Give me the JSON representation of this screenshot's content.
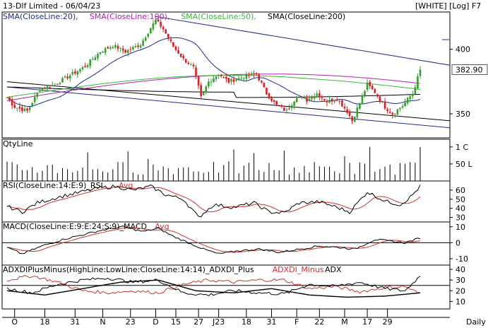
{
  "header": {
    "title": "13-Dlf Limited - 06/04/23",
    "mode": "[WHITE] [Log] F7"
  },
  "colors": {
    "up": "#33a02c",
    "down": "#e31a1c",
    "sma20": "#1f2b8f",
    "sma100": "#b020b0",
    "sma50": "#3ab83a",
    "sma200": "#000000",
    "trend": "#1f2b8f",
    "avg": "#d03030",
    "volume": "#000000",
    "grid": "#000000"
  },
  "chart_data": [
    {
      "type": "candlestick",
      "panel": "price",
      "legend": [
        {
          "label": "SMA(CloseLine:20),",
          "color": "#1f2b8f"
        },
        {
          "label": "SMA(CloseLine:100),",
          "color": "#b020b0"
        },
        {
          "label": "SMA(CloseLine:50),",
          "color": "#3ab83a"
        },
        {
          "label": "SMA(CloseLine:200)",
          "color": "#000000"
        }
      ],
      "yticks": [
        400,
        350
      ],
      "ylim": [
        333,
        432
      ],
      "last_price": "382.90",
      "xticks": [
        "O",
        "18",
        "31",
        "N",
        "23",
        "D",
        "15",
        "27",
        "J23",
        "18",
        "31",
        "F",
        "22",
        "M",
        "17",
        "29"
      ],
      "xtick_positions": [
        3,
        15,
        27,
        38,
        49,
        59,
        67,
        76,
        84,
        95,
        105,
        115,
        124,
        134,
        143,
        151
      ],
      "trendlines": [
        {
          "from": [
            59,
            428
          ],
          "to": [
            164,
            387
          ]
        },
        {
          "from": [
            0,
            370
          ],
          "to": [
            164,
            340
          ]
        },
        {
          "from": [
            0,
            374
          ],
          "to": [
            164,
            345
          ]
        }
      ],
      "keypoints": [
        {
          "i": 0,
          "c": 362
        },
        {
          "i": 3,
          "c": 355
        },
        {
          "i": 8,
          "c": 352
        },
        {
          "i": 13,
          "c": 368
        },
        {
          "i": 19,
          "c": 372
        },
        {
          "i": 25,
          "c": 379
        },
        {
          "i": 31,
          "c": 386
        },
        {
          "i": 37,
          "c": 398
        },
        {
          "i": 42,
          "c": 403
        },
        {
          "i": 47,
          "c": 398
        },
        {
          "i": 53,
          "c": 404
        },
        {
          "i": 59,
          "c": 425
        },
        {
          "i": 62,
          "c": 417
        },
        {
          "i": 66,
          "c": 402
        },
        {
          "i": 70,
          "c": 392
        },
        {
          "i": 74,
          "c": 385
        },
        {
          "i": 77,
          "c": 362
        },
        {
          "i": 80,
          "c": 374
        },
        {
          "i": 84,
          "c": 380
        },
        {
          "i": 88,
          "c": 374
        },
        {
          "i": 94,
          "c": 378
        },
        {
          "i": 99,
          "c": 380
        },
        {
          "i": 103,
          "c": 365
        },
        {
          "i": 107,
          "c": 356
        },
        {
          "i": 111,
          "c": 352
        },
        {
          "i": 115,
          "c": 363
        },
        {
          "i": 119,
          "c": 360
        },
        {
          "i": 123,
          "c": 365
        },
        {
          "i": 127,
          "c": 359
        },
        {
          "i": 131,
          "c": 361
        },
        {
          "i": 135,
          "c": 352
        },
        {
          "i": 137,
          "c": 345
        },
        {
          "i": 140,
          "c": 358
        },
        {
          "i": 143,
          "c": 372
        },
        {
          "i": 146,
          "c": 366
        },
        {
          "i": 150,
          "c": 355
        },
        {
          "i": 153,
          "c": 350
        },
        {
          "i": 157,
          "c": 356
        },
        {
          "i": 161,
          "c": 365
        },
        {
          "i": 164,
          "c": 383
        }
      ]
    },
    {
      "type": "bar",
      "panel": "volume",
      "legend": [
        {
          "label": "QtyLine",
          "color": "#000000"
        }
      ],
      "yticks": [
        "1 C",
        "50 L"
      ],
      "ytick_values": [
        100,
        50
      ]
    },
    {
      "type": "line",
      "panel": "rsi",
      "legend": [
        {
          "label": "RSI(CloseLine:14:E:9)_RSI",
          "color": "#000000"
        },
        {
          "label": "Avg",
          "color": "#d03030"
        }
      ],
      "yticks": [
        60,
        50,
        40,
        30
      ],
      "ylim": [
        25,
        70
      ],
      "keypoints": [
        {
          "i": 0,
          "v": 42
        },
        {
          "i": 6,
          "v": 36
        },
        {
          "i": 12,
          "v": 46
        },
        {
          "i": 20,
          "v": 52
        },
        {
          "i": 28,
          "v": 57
        },
        {
          "i": 36,
          "v": 62
        },
        {
          "i": 43,
          "v": 64
        },
        {
          "i": 50,
          "v": 60
        },
        {
          "i": 57,
          "v": 64
        },
        {
          "i": 63,
          "v": 55
        },
        {
          "i": 70,
          "v": 50
        },
        {
          "i": 76,
          "v": 30
        },
        {
          "i": 82,
          "v": 44
        },
        {
          "i": 90,
          "v": 41
        },
        {
          "i": 98,
          "v": 46
        },
        {
          "i": 104,
          "v": 36
        },
        {
          "i": 110,
          "v": 35
        },
        {
          "i": 116,
          "v": 46
        },
        {
          "i": 124,
          "v": 47
        },
        {
          "i": 130,
          "v": 42
        },
        {
          "i": 136,
          "v": 36
        },
        {
          "i": 143,
          "v": 58
        },
        {
          "i": 150,
          "v": 48
        },
        {
          "i": 156,
          "v": 44
        },
        {
          "i": 160,
          "v": 52
        },
        {
          "i": 164,
          "v": 64
        }
      ]
    },
    {
      "type": "line",
      "panel": "macd",
      "legend": [
        {
          "label": "MACD(CloseLine:E:9:E:24:S:9)_MACD",
          "color": "#000000"
        },
        {
          "label": "Avg",
          "color": "#d03030"
        }
      ],
      "yticks": [
        10,
        0,
        -10
      ],
      "ylim": [
        -14,
        13
      ],
      "zero_line": 0,
      "keypoints": [
        {
          "i": 0,
          "v": -3
        },
        {
          "i": 6,
          "v": -7
        },
        {
          "i": 14,
          "v": -2
        },
        {
          "i": 22,
          "v": 2
        },
        {
          "i": 30,
          "v": 5
        },
        {
          "i": 38,
          "v": 8
        },
        {
          "i": 46,
          "v": 10
        },
        {
          "i": 54,
          "v": 7
        },
        {
          "i": 60,
          "v": 9
        },
        {
          "i": 66,
          "v": 4
        },
        {
          "i": 72,
          "v": 0
        },
        {
          "i": 78,
          "v": -4
        },
        {
          "i": 84,
          "v": -7
        },
        {
          "i": 92,
          "v": -5
        },
        {
          "i": 100,
          "v": -4
        },
        {
          "i": 108,
          "v": -6
        },
        {
          "i": 116,
          "v": -4
        },
        {
          "i": 124,
          "v": -2
        },
        {
          "i": 132,
          "v": -3
        },
        {
          "i": 138,
          "v": -4
        },
        {
          "i": 146,
          "v": 2
        },
        {
          "i": 152,
          "v": 1
        },
        {
          "i": 158,
          "v": 0
        },
        {
          "i": 164,
          "v": 3
        }
      ]
    },
    {
      "type": "line",
      "panel": "adx",
      "legend": [
        {
          "label": "ADXDIPlusMinus(HighLine:LowLine:CloseLine:14:14)_ADXDI_Plus",
          "color": "#000000"
        },
        {
          "label": "ADXDI_Minus",
          "color": "#d03030"
        },
        {
          "label": "ADX",
          "color": "#000000"
        }
      ],
      "yticks": [
        40,
        30,
        20,
        10
      ],
      "ylim": [
        3,
        44
      ],
      "reference_line": 25,
      "plus_keypoints": [
        {
          "i": 0,
          "v": 22
        },
        {
          "i": 10,
          "v": 18
        },
        {
          "i": 20,
          "v": 26
        },
        {
          "i": 30,
          "v": 30
        },
        {
          "i": 40,
          "v": 32
        },
        {
          "i": 50,
          "v": 28
        },
        {
          "i": 60,
          "v": 30
        },
        {
          "i": 70,
          "v": 18
        },
        {
          "i": 80,
          "v": 16
        },
        {
          "i": 90,
          "v": 20
        },
        {
          "i": 100,
          "v": 18
        },
        {
          "i": 110,
          "v": 17
        },
        {
          "i": 120,
          "v": 26
        },
        {
          "i": 130,
          "v": 24
        },
        {
          "i": 140,
          "v": 28
        },
        {
          "i": 150,
          "v": 22
        },
        {
          "i": 158,
          "v": 20
        },
        {
          "i": 164,
          "v": 34
        }
      ],
      "minus_keypoints": [
        {
          "i": 0,
          "v": 30
        },
        {
          "i": 10,
          "v": 34
        },
        {
          "i": 20,
          "v": 28
        },
        {
          "i": 30,
          "v": 20
        },
        {
          "i": 40,
          "v": 18
        },
        {
          "i": 50,
          "v": 20
        },
        {
          "i": 60,
          "v": 18
        },
        {
          "i": 70,
          "v": 26
        },
        {
          "i": 80,
          "v": 30
        },
        {
          "i": 90,
          "v": 28
        },
        {
          "i": 100,
          "v": 30
        },
        {
          "i": 110,
          "v": 30
        },
        {
          "i": 120,
          "v": 22
        },
        {
          "i": 130,
          "v": 24
        },
        {
          "i": 140,
          "v": 19
        },
        {
          "i": 150,
          "v": 23
        },
        {
          "i": 158,
          "v": 24
        },
        {
          "i": 164,
          "v": 17
        }
      ],
      "adx_keypoints": [
        {
          "i": 0,
          "v": 20
        },
        {
          "i": 15,
          "v": 16
        },
        {
          "i": 30,
          "v": 22
        },
        {
          "i": 45,
          "v": 28
        },
        {
          "i": 60,
          "v": 30
        },
        {
          "i": 75,
          "v": 20
        },
        {
          "i": 90,
          "v": 18
        },
        {
          "i": 105,
          "v": 22
        },
        {
          "i": 120,
          "v": 16
        },
        {
          "i": 135,
          "v": 14
        },
        {
          "i": 150,
          "v": 15
        },
        {
          "i": 164,
          "v": 18
        }
      ]
    }
  ],
  "footer": {
    "period_label": "Daily"
  }
}
